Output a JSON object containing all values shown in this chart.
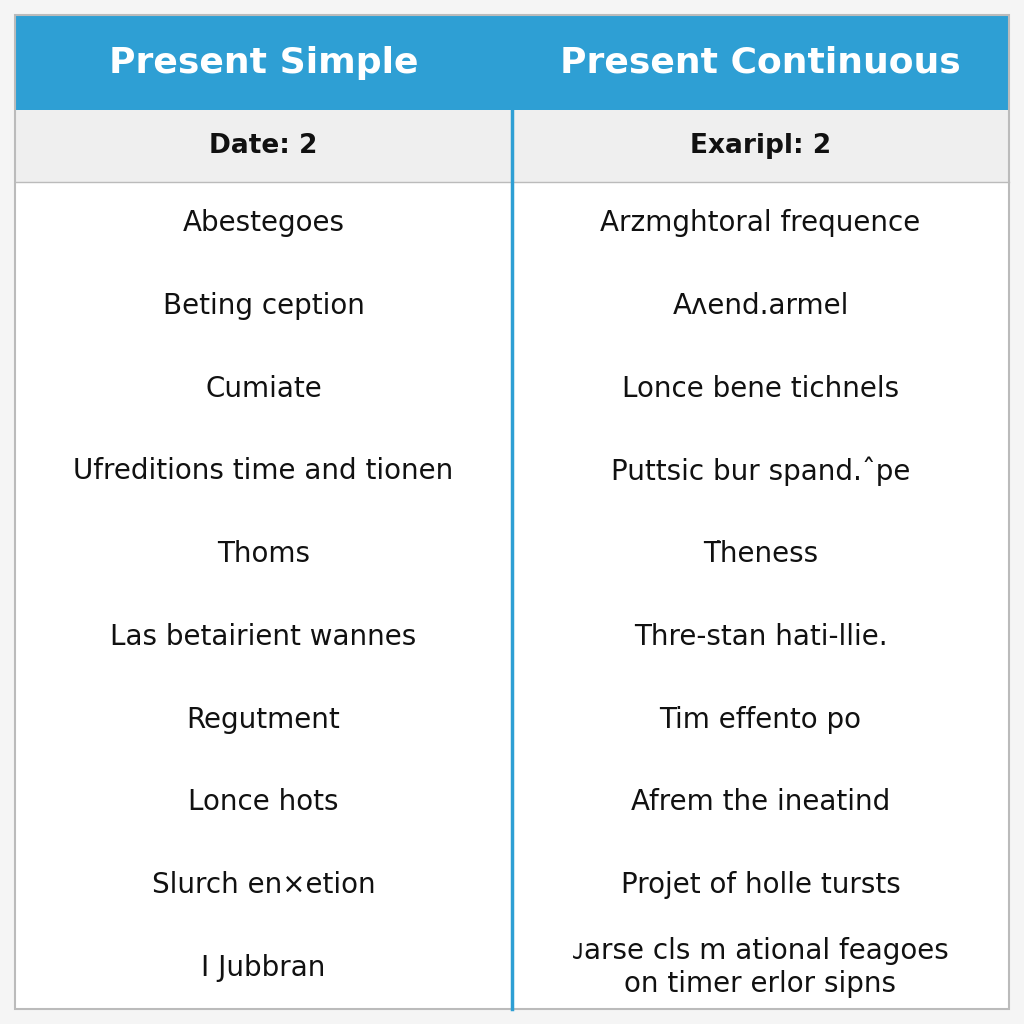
{
  "title_left": "Present Simple",
  "title_right": "Present Continuous",
  "header_left": "Date: 2",
  "header_right": "Exaripl: 2",
  "header_bg": "#efefef",
  "title_bg": "#2e9fd4",
  "title_text_color": "#ffffff",
  "divider_color": "#2e9fd4",
  "body_bg": "#ffffff",
  "border_color": "#bbbbbb",
  "rows_left": [
    "Abestegoes",
    "Beting ception",
    "Cumiate",
    "Ufreditions time and tionen",
    "Thoms",
    "Las betairient wannes",
    "Regutment",
    "Lonce hots",
    "Slurch en×etion",
    "I Jubbran"
  ],
  "rows_right": [
    "Arzmghtoral frequence",
    "Aʌend.armel",
    "Lonce bene tichnels",
    "Puttsic bur spand.ˆpe",
    "T͘heness",
    "Thre-stan hati-llie.",
    "Tim effento po",
    "Afrem the ineatind",
    "Projet of holle tursts",
    "ᴊarse cls m ational feagoes\non timer erlor sipns"
  ],
  "title_fontsize": 26,
  "header_fontsize": 19,
  "row_fontsize": 20,
  "fig_bg": "#f5f5f5"
}
